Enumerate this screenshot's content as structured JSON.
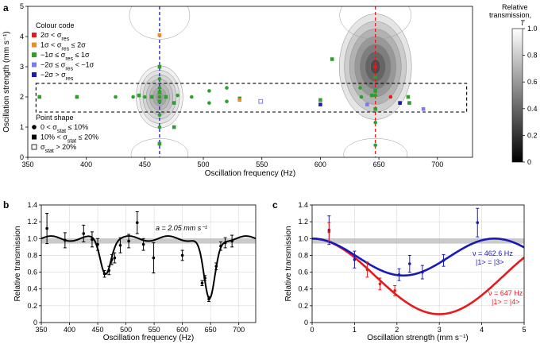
{
  "panels": {
    "a": "a",
    "b": "b",
    "c": "c"
  },
  "colorbar": {
    "title_line1": "Relative",
    "title_line2": "transmission,",
    "title_symbol": "T",
    "ticks": [
      0,
      0.2,
      0.4,
      0.6,
      0.8,
      1.0
    ],
    "tick_labels": [
      "0",
      "0.2",
      "0.4",
      "0.6",
      "0.8",
      "1.0"
    ]
  },
  "legend_a": {
    "colour_code_title": "Colour code",
    "colour_items": [
      {
        "color": "#e8191b",
        "label": "2σ < σ_res"
      },
      {
        "color": "#f08a24",
        "label": "1σ < σ_res ≤ 2σ"
      },
      {
        "color": "#2ca02c",
        "label": "−1σ ≤ σ_res ≤ 1σ"
      },
      {
        "color": "#7b7bf0",
        "label": "−2σ ≤ σ_res < −1σ"
      },
      {
        "color": "#1a1ab5",
        "label": "−2σ > σ_res"
      }
    ],
    "shape_title": "Point shape",
    "shape_items": [
      {
        "shape": "circle",
        "label": "0 < σ_stat ≤ 10%"
      },
      {
        "shape": "square",
        "label": "10% < σ_stat ≤ 20%"
      },
      {
        "shape": "open-square",
        "label": "σ_stat > 20%"
      }
    ]
  },
  "chart_data": [
    {
      "id": "a",
      "type": "scatter",
      "xlabel": "Oscillation frequency (Hz)",
      "ylabel": "Oscillation strength (mm s⁻¹)",
      "xlim": [
        350,
        730
      ],
      "ylim": [
        0,
        5
      ],
      "xticks": [
        350,
        400,
        450,
        500,
        550,
        600,
        650,
        700
      ],
      "yticks": [
        0,
        1,
        2,
        3,
        4,
        5
      ],
      "vlines": [
        {
          "x": 462.6,
          "color": "#1a1ab5"
        },
        {
          "x": 647,
          "color": "#e8191b"
        }
      ],
      "box": {
        "x": [
          357,
          725
        ],
        "y": [
          1.5,
          2.45
        ]
      },
      "contour_centers": [
        {
          "x": 462.6,
          "y": 2.0,
          "depth": 0.5
        },
        {
          "x": 647,
          "y": 3.0,
          "depth": 0.9
        }
      ],
      "points": [
        {
          "x": 360,
          "y": 2.0,
          "c": "#2ca02c",
          "s": "square"
        },
        {
          "x": 392,
          "y": 2.0,
          "c": "#2ca02c",
          "s": "square"
        },
        {
          "x": 425,
          "y": 2.0,
          "c": "#2ca02c",
          "s": "circle"
        },
        {
          "x": 440,
          "y": 2.0,
          "c": "#2ca02c",
          "s": "circle"
        },
        {
          "x": 445,
          "y": 2.05,
          "c": "#2ca02c",
          "s": "square"
        },
        {
          "x": 450,
          "y": 2.0,
          "c": "#2ca02c",
          "s": "circle"
        },
        {
          "x": 456,
          "y": 2.0,
          "c": "#2ca02c",
          "s": "square"
        },
        {
          "x": 462.6,
          "y": 4.05,
          "c": "#f08a24",
          "s": "square"
        },
        {
          "x": 462.6,
          "y": 3.0,
          "c": "#2ca02c",
          "s": "square"
        },
        {
          "x": 462.6,
          "y": 2.6,
          "c": "#2ca02c",
          "s": "circle"
        },
        {
          "x": 462.6,
          "y": 2.3,
          "c": "#2ca02c",
          "s": "circle"
        },
        {
          "x": 462.6,
          "y": 2.15,
          "c": "#2ca02c",
          "s": "square"
        },
        {
          "x": 462.6,
          "y": 2.0,
          "c": "#2ca02c",
          "s": "circle"
        },
        {
          "x": 462.6,
          "y": 1.85,
          "c": "#2ca02c",
          "s": "square"
        },
        {
          "x": 462.6,
          "y": 1.4,
          "c": "#2ca02c",
          "s": "circle"
        },
        {
          "x": 462.6,
          "y": 1.0,
          "c": "#2ca02c",
          "s": "circle"
        },
        {
          "x": 462.6,
          "y": 0.45,
          "c": "#2ca02c",
          "s": "square"
        },
        {
          "x": 468,
          "y": 2.0,
          "c": "#2ca02c",
          "s": "square"
        },
        {
          "x": 475,
          "y": 1.8,
          "c": "#2ca02c",
          "s": "square"
        },
        {
          "x": 475,
          "y": 1.0,
          "c": "#2ca02c",
          "s": "square"
        },
        {
          "x": 478,
          "y": 2.05,
          "c": "#2ca02c",
          "s": "circle"
        },
        {
          "x": 490,
          "y": 2.0,
          "c": "#2ca02c",
          "s": "circle"
        },
        {
          "x": 505,
          "y": 2.2,
          "c": "#2ca02c",
          "s": "circle"
        },
        {
          "x": 505,
          "y": 1.8,
          "c": "#2ca02c",
          "s": "circle"
        },
        {
          "x": 520,
          "y": 2.3,
          "c": "#2ca02c",
          "s": "circle"
        },
        {
          "x": 520,
          "y": 1.85,
          "c": "#2ca02c",
          "s": "circle"
        },
        {
          "x": 531,
          "y": 1.95,
          "c": "#2ca02c",
          "s": "square"
        },
        {
          "x": 531,
          "y": 1.9,
          "c": "#f08a24",
          "s": "square"
        },
        {
          "x": 549,
          "y": 1.85,
          "c": "#7b7bf0",
          "s": "open-square"
        },
        {
          "x": 600,
          "y": 1.9,
          "c": "#2ca02c",
          "s": "square"
        },
        {
          "x": 600,
          "y": 1.75,
          "c": "#1a1ab5",
          "s": "square"
        },
        {
          "x": 610,
          "y": 3.25,
          "c": "#2ca02c",
          "s": "square"
        },
        {
          "x": 634,
          "y": 2.3,
          "c": "#2ca02c",
          "s": "circle"
        },
        {
          "x": 635,
          "y": 2.0,
          "c": "#2ca02c",
          "s": "circle"
        },
        {
          "x": 640,
          "y": 1.75,
          "c": "#7b7bf0",
          "s": "square"
        },
        {
          "x": 644,
          "y": 2.05,
          "c": "#2ca02c",
          "s": "square"
        },
        {
          "x": 647,
          "y": 3.0,
          "c": "#e8191b",
          "s": "circle"
        },
        {
          "x": 647,
          "y": 2.65,
          "c": "#2ca02c",
          "s": "circle"
        },
        {
          "x": 647,
          "y": 2.2,
          "c": "#2ca02c",
          "s": "square"
        },
        {
          "x": 647,
          "y": 2.05,
          "c": "#2ca02c",
          "s": "circle"
        },
        {
          "x": 647,
          "y": 1.6,
          "c": "#2ca02c",
          "s": "square"
        },
        {
          "x": 647,
          "y": 1.15,
          "c": "#2ca02c",
          "s": "circle"
        },
        {
          "x": 647,
          "y": 0.4,
          "c": "#2ca02c",
          "s": "circle"
        },
        {
          "x": 660,
          "y": 2.0,
          "c": "#e8191b",
          "s": "circle"
        },
        {
          "x": 668,
          "y": 1.8,
          "c": "#1a1ab5",
          "s": "square"
        },
        {
          "x": 675,
          "y": 2.0,
          "c": "#2ca02c",
          "s": "square"
        },
        {
          "x": 676,
          "y": 1.8,
          "c": "#2ca02c",
          "s": "square"
        },
        {
          "x": 688,
          "y": 1.6,
          "c": "#7b7bf0",
          "s": "square"
        }
      ]
    },
    {
      "id": "b",
      "type": "scatter",
      "xlabel": "Oscillation frequency (Hz)",
      "ylabel": "Relative transmission",
      "annotation": "a = 2.05 mm s⁻¹",
      "xlim": [
        350,
        730
      ],
      "ylim": [
        0,
        1.4
      ],
      "xticks": [
        350,
        400,
        450,
        500,
        550,
        600,
        650,
        700
      ],
      "yticks": [
        0,
        0.2,
        0.4,
        0.6,
        0.8,
        1.0,
        1.2,
        1.4
      ],
      "ytick_labels": [
        "0",
        "0.2",
        "0.4",
        "0.6",
        "0.8",
        "1.0",
        "1.2",
        "1.4"
      ],
      "reference_band": [
        0.94,
        1.0
      ],
      "points": [
        {
          "x": 360,
          "y": 1.12,
          "err": 0.18
        },
        {
          "x": 392,
          "y": 0.98,
          "err": 0.09
        },
        {
          "x": 425,
          "y": 1.06,
          "err": 0.1
        },
        {
          "x": 440,
          "y": 0.99,
          "err": 0.09
        },
        {
          "x": 450,
          "y": 0.93,
          "err": 0.07
        },
        {
          "x": 462,
          "y": 0.58,
          "err": 0.04
        },
        {
          "x": 470,
          "y": 0.62,
          "err": 0.05
        },
        {
          "x": 475,
          "y": 0.75,
          "err": 0.06
        },
        {
          "x": 480,
          "y": 0.77,
          "err": 0.06
        },
        {
          "x": 490,
          "y": 0.92,
          "err": 0.09
        },
        {
          "x": 505,
          "y": 0.97,
          "err": 0.08
        },
        {
          "x": 520,
          "y": 1.19,
          "err": 0.13
        },
        {
          "x": 531,
          "y": 0.93,
          "err": 0.07
        },
        {
          "x": 549,
          "y": 0.77,
          "err": 0.18
        },
        {
          "x": 600,
          "y": 0.8,
          "err": 0.06
        },
        {
          "x": 635,
          "y": 0.47,
          "err": 0.03
        },
        {
          "x": 640,
          "y": 0.53,
          "err": 0.03
        },
        {
          "x": 647,
          "y": 0.28,
          "err": 0.03
        },
        {
          "x": 660,
          "y": 0.67,
          "err": 0.04
        },
        {
          "x": 668,
          "y": 0.91,
          "err": 0.05
        },
        {
          "x": 676,
          "y": 0.95,
          "err": 0.06
        },
        {
          "x": 688,
          "y": 0.97,
          "err": 0.07
        }
      ]
    },
    {
      "id": "c",
      "type": "scatter",
      "xlabel": "Oscillation strength (mm s⁻¹)",
      "ylabel": "Relative transmission",
      "xlim": [
        0,
        5
      ],
      "ylim": [
        0,
        1.4
      ],
      "xticks": [
        0,
        1,
        2,
        3,
        4,
        5
      ],
      "yticks": [
        0,
        0.2,
        0.4,
        0.6,
        0.8,
        1.0,
        1.2,
        1.4
      ],
      "ytick_labels": [
        "0",
        "0.2",
        "0.4",
        "0.6",
        "0.8",
        "1.0",
        "1.2",
        "1.4"
      ],
      "reference_band": [
        0.94,
        1.0
      ],
      "series": [
        {
          "name": "ν = 462.6 Hz",
          "label2": "|1> = |3>",
          "color": "#1a1ab5",
          "points": [
            {
              "x": 0.4,
              "y": 1.1,
              "err": 0.17
            },
            {
              "x": 1.0,
              "y": 0.75,
              "err": 0.1
            },
            {
              "x": 2.05,
              "y": 0.57,
              "err": 0.07
            },
            {
              "x": 2.3,
              "y": 0.7,
              "err": 0.1
            },
            {
              "x": 2.6,
              "y": 0.6,
              "err": 0.08
            },
            {
              "x": 3.1,
              "y": 0.74,
              "err": 0.07
            },
            {
              "x": 3.9,
              "y": 1.19,
              "err": 0.17
            }
          ]
        },
        {
          "name": "ν = 647 Hz",
          "label2": "|1> = |4>",
          "color": "#e8191b",
          "points": [
            {
              "x": 0.4,
              "y": 1.08,
              "err": 0.11
            },
            {
              "x": 1.3,
              "y": 0.63,
              "err": 0.09
            },
            {
              "x": 1.6,
              "y": 0.46,
              "err": 0.07
            },
            {
              "x": 1.95,
              "y": 0.38,
              "err": 0.06
            }
          ]
        }
      ]
    }
  ]
}
